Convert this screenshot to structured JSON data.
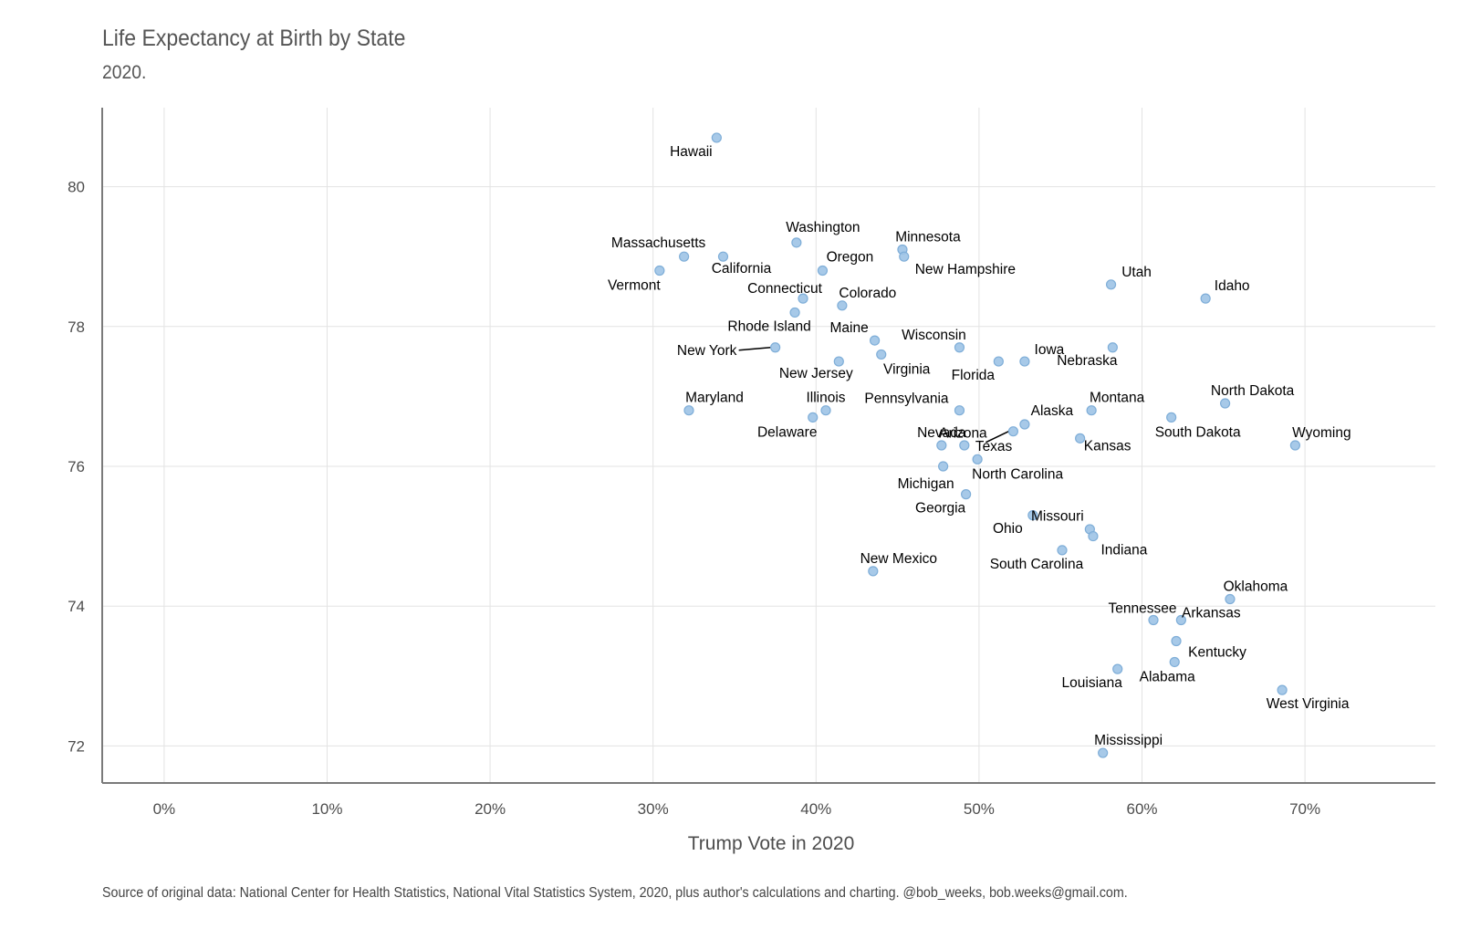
{
  "title": "Life Expectancy at Birth by State",
  "subtitle": "2020.",
  "caption": "Source of original data: National Center for Health Statistics, National Vital Statistics System, 2020, plus author's calculations and charting. @bob_weeks, bob.weeks@gmail.com.",
  "chart_data": {
    "type": "scatter",
    "xlabel": "Trump Vote in 2020",
    "ylabel": "",
    "xlim": [
      -0.038,
      0.78
    ],
    "ylim": [
      71.47,
      81.13
    ],
    "x_ticks": [
      0,
      0.1,
      0.2,
      0.3,
      0.4,
      0.5,
      0.6,
      0.7
    ],
    "x_tick_labels": [
      "0%",
      "10%",
      "20%",
      "30%",
      "40%",
      "50%",
      "60%",
      "70%"
    ],
    "y_ticks": [
      72,
      74,
      76,
      78,
      80
    ],
    "y_tick_labels": [
      "72",
      "74",
      "76",
      "78",
      "80"
    ],
    "grid": true,
    "point_color": "#9DC3E6",
    "point_stroke": "#7FAED8",
    "points": [
      {
        "label": "Hawaii",
        "x": 0.339,
        "y": 80.7
      },
      {
        "label": "Massachusetts",
        "x": 0.319,
        "y": 79.0
      },
      {
        "label": "California",
        "x": 0.343,
        "y": 79.0
      },
      {
        "label": "Vermont",
        "x": 0.304,
        "y": 78.8
      },
      {
        "label": "Washington",
        "x": 0.388,
        "y": 79.2
      },
      {
        "label": "Minnesota",
        "x": 0.453,
        "y": 79.1
      },
      {
        "label": "New Hampshire",
        "x": 0.454,
        "y": 79.0
      },
      {
        "label": "Oregon",
        "x": 0.404,
        "y": 78.8
      },
      {
        "label": "Connecticut",
        "x": 0.392,
        "y": 78.4
      },
      {
        "label": "Colorado",
        "x": 0.416,
        "y": 78.3
      },
      {
        "label": "Rhode Island",
        "x": 0.387,
        "y": 78.2
      },
      {
        "label": "Utah",
        "x": 0.581,
        "y": 78.6
      },
      {
        "label": "Idaho",
        "x": 0.639,
        "y": 78.4
      },
      {
        "label": "Maine",
        "x": 0.436,
        "y": 77.8
      },
      {
        "label": "Virginia",
        "x": 0.44,
        "y": 77.6
      },
      {
        "label": "New York",
        "x": 0.375,
        "y": 77.7
      },
      {
        "label": "New Jersey",
        "x": 0.414,
        "y": 77.5
      },
      {
        "label": "Wisconsin",
        "x": 0.488,
        "y": 77.7
      },
      {
        "label": "Florida",
        "x": 0.512,
        "y": 77.5
      },
      {
        "label": "Iowa",
        "x": 0.528,
        "y": 77.5
      },
      {
        "label": "Nebraska",
        "x": 0.582,
        "y": 77.7
      },
      {
        "label": "Maryland",
        "x": 0.322,
        "y": 76.8
      },
      {
        "label": "Illinois",
        "x": 0.406,
        "y": 76.8
      },
      {
        "label": "Delaware",
        "x": 0.398,
        "y": 76.7
      },
      {
        "label": "Pennsylvania",
        "x": 0.488,
        "y": 76.8
      },
      {
        "label": "Alaska",
        "x": 0.528,
        "y": 76.6
      },
      {
        "label": "Montana",
        "x": 0.569,
        "y": 76.8
      },
      {
        "label": "North Dakota",
        "x": 0.651,
        "y": 76.9
      },
      {
        "label": "South Dakota",
        "x": 0.618,
        "y": 76.7
      },
      {
        "label": "Nevada",
        "x": 0.477,
        "y": 76.3
      },
      {
        "label": "Texas",
        "x": 0.491,
        "y": 76.3
      },
      {
        "label": "Arizona",
        "x": 0.521,
        "y": 76.5
      },
      {
        "label": "North Carolina",
        "x": 0.499,
        "y": 76.1
      },
      {
        "label": "Kansas",
        "x": 0.562,
        "y": 76.4
      },
      {
        "label": "Wyoming",
        "x": 0.694,
        "y": 76.3
      },
      {
        "label": "Michigan",
        "x": 0.478,
        "y": 76.0
      },
      {
        "label": "Georgia",
        "x": 0.492,
        "y": 75.6
      },
      {
        "label": "Missouri",
        "x": 0.533,
        "y": 75.3
      },
      {
        "label": "Ohio",
        "x": 0.568,
        "y": 75.1
      },
      {
        "label": "Indiana",
        "x": 0.57,
        "y": 75.0
      },
      {
        "label": "South Carolina",
        "x": 0.551,
        "y": 74.8
      },
      {
        "label": "New Mexico",
        "x": 0.435,
        "y": 74.5
      },
      {
        "label": "Oklahoma",
        "x": 0.654,
        "y": 74.1
      },
      {
        "label": "Tennessee",
        "x": 0.607,
        "y": 73.8
      },
      {
        "label": "Arkansas",
        "x": 0.624,
        "y": 73.8
      },
      {
        "label": "Kentucky",
        "x": 0.621,
        "y": 73.5
      },
      {
        "label": "Alabama",
        "x": 0.62,
        "y": 73.2
      },
      {
        "label": "Louisiana",
        "x": 0.585,
        "y": 73.1
      },
      {
        "label": "West Virginia",
        "x": 0.686,
        "y": 72.8
      },
      {
        "label": "Mississippi",
        "x": 0.576,
        "y": 71.9
      }
    ]
  }
}
